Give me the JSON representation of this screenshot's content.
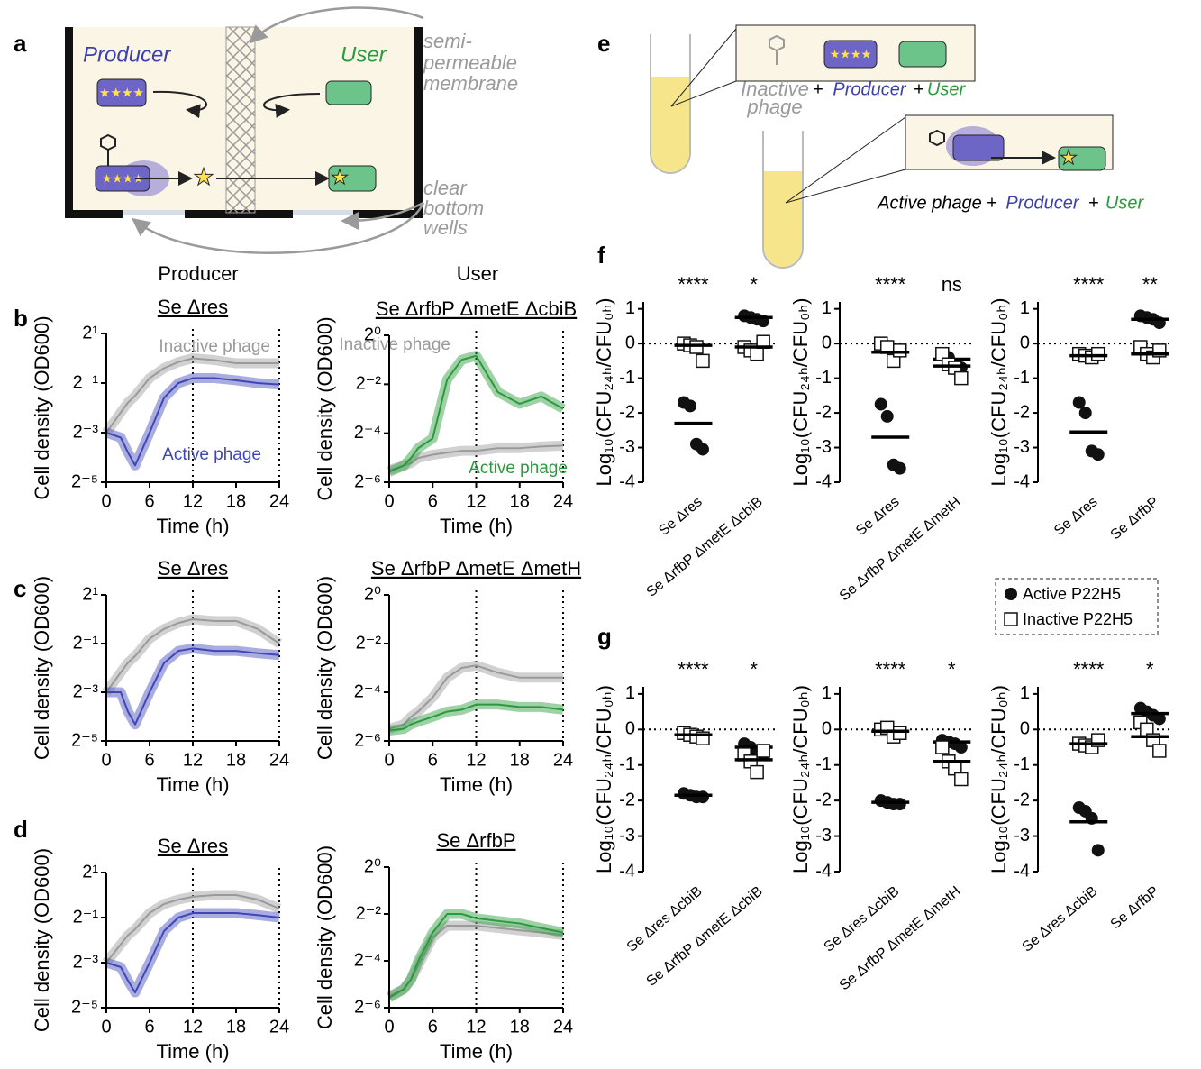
{
  "panel_labels": [
    "a",
    "b",
    "c",
    "d",
    "e",
    "f",
    "g"
  ],
  "column_headers": [
    "Producer",
    "User"
  ],
  "diagram_a": {
    "producer": "Producer",
    "user": "User",
    "membrane_label": [
      "semi-",
      "permeable",
      "membrane"
    ],
    "wells_label": [
      "clear",
      "bottom",
      "wells"
    ]
  },
  "diagram_e": {
    "mixture_1": {
      "phage": [
        "Inactive",
        "phage"
      ],
      "plus_1": "+",
      "producer": "Producer",
      "plus_2": "+",
      "user": "User"
    },
    "mixture_2": {
      "phage": "Active phage",
      "plus_1": "+",
      "producer": "Producer",
      "plus_2": "+",
      "user": "User"
    }
  },
  "chart_data": [
    {
      "type": "line",
      "title": "Se Δres",
      "xlabel": "Time (h)",
      "ylabel": "Cell density (OD600)",
      "yscale": "log2",
      "x": [
        0,
        2,
        3,
        4,
        6,
        8,
        10,
        12,
        15,
        18,
        21,
        24
      ],
      "xlim": [
        0,
        24
      ],
      "xticks": [
        0,
        6,
        12,
        18,
        24
      ],
      "vlines": [
        12,
        24
      ],
      "ylim": [
        0.03125,
        2
      ],
      "yticks": [
        {
          "value": 2,
          "label": "2¹"
        },
        {
          "value": 0.5,
          "label": "2⁻¹"
        },
        {
          "value": 0.125,
          "label": "2⁻³"
        },
        {
          "value": 0.03125,
          "label": "2⁻⁵"
        }
      ],
      "series": [
        {
          "name": "Inactive phage",
          "color": "#9a9a9a",
          "values": [
            0.125,
            0.22,
            0.29,
            0.35,
            0.574,
            0.758,
            0.9,
            1.0,
            0.95,
            0.87,
            0.87,
            0.87
          ]
        },
        {
          "name": "Active phage",
          "color": "#4046b8",
          "values": [
            0.125,
            0.109,
            0.072,
            0.05,
            0.125,
            0.33,
            0.5,
            0.574,
            0.574,
            0.54,
            0.5,
            0.48
          ]
        }
      ]
    },
    {
      "type": "line",
      "title": "Se ΔrfbP ΔmetE ΔcbiB",
      "xlabel": "Time (h)",
      "ylabel": "Cell density (OD600)",
      "yscale": "log2",
      "x": [
        0,
        2,
        3,
        4,
        6,
        8,
        10,
        12,
        15,
        18,
        21,
        24
      ],
      "xlim": [
        0,
        24
      ],
      "xticks": [
        0,
        6,
        12,
        18,
        24
      ],
      "vlines": [
        12,
        24
      ],
      "ylim": [
        0.015625,
        1
      ],
      "yticks": [
        {
          "value": 1,
          "label": "2⁰"
        },
        {
          "value": 0.25,
          "label": "2⁻²"
        },
        {
          "value": 0.0625,
          "label": "2⁻⁴"
        },
        {
          "value": 0.015625,
          "label": "2⁻⁶"
        }
      ],
      "series": [
        {
          "name": "Inactive phage",
          "color": "#9a9a9a",
          "values": [
            0.022,
            0.025,
            0.027,
            0.031,
            0.034,
            0.036,
            0.038,
            0.038,
            0.041,
            0.041,
            0.043,
            0.044
          ]
        },
        {
          "name": "Active phage",
          "color": "#2a9a3c",
          "values": [
            0.021,
            0.025,
            0.031,
            0.041,
            0.054,
            0.287,
            0.5,
            0.56,
            0.2,
            0.144,
            0.177,
            0.125
          ]
        }
      ]
    },
    {
      "type": "line",
      "title": "Se Δres",
      "xlabel": "Time (h)",
      "ylabel": "Cell density (OD600)",
      "yscale": "log2",
      "x": [
        0,
        2,
        3,
        4,
        6,
        8,
        10,
        12,
        15,
        18,
        21,
        24
      ],
      "xlim": [
        0,
        24
      ],
      "xticks": [
        0,
        6,
        12,
        18,
        24
      ],
      "vlines": [
        12,
        24
      ],
      "ylim": [
        0.03125,
        2
      ],
      "yticks": [
        {
          "value": 2,
          "label": "2¹"
        },
        {
          "value": 0.5,
          "label": "2⁻¹"
        },
        {
          "value": 0.125,
          "label": "2⁻³"
        },
        {
          "value": 0.03125,
          "label": "2⁻⁵"
        }
      ],
      "series": [
        {
          "color": "#9a9a9a",
          "values": [
            0.125,
            0.22,
            0.29,
            0.35,
            0.574,
            0.758,
            0.9,
            1.0,
            0.95,
            0.95,
            0.758,
            0.5
          ]
        },
        {
          "color": "#4046b8",
          "values": [
            0.125,
            0.125,
            0.072,
            0.05,
            0.125,
            0.287,
            0.406,
            0.435,
            0.406,
            0.406,
            0.38,
            0.36
          ]
        }
      ]
    },
    {
      "type": "line",
      "title": "Se ΔrfbP ΔmetE ΔmetH",
      "xlabel": "Time (h)",
      "ylabel": "Cell density (OD600)",
      "yscale": "log2",
      "x": [
        0,
        2,
        3,
        4,
        6,
        8,
        10,
        12,
        15,
        18,
        21,
        24
      ],
      "xlim": [
        0,
        24
      ],
      "xticks": [
        0,
        6,
        12,
        18,
        24
      ],
      "vlines": [
        12,
        24
      ],
      "ylim": [
        0.015625,
        1
      ],
      "yticks": [
        {
          "value": 1,
          "label": "2⁰"
        },
        {
          "value": 0.25,
          "label": "2⁻²"
        },
        {
          "value": 0.0625,
          "label": "2⁻⁴"
        },
        {
          "value": 0.015625,
          "label": "2⁻⁶"
        }
      ],
      "series": [
        {
          "color": "#9a9a9a",
          "values": [
            0.022,
            0.025,
            0.031,
            0.036,
            0.054,
            0.095,
            0.125,
            0.134,
            0.109,
            0.095,
            0.095,
            0.095
          ]
        },
        {
          "color": "#2a9a3c",
          "values": [
            0.021,
            0.022,
            0.025,
            0.027,
            0.031,
            0.036,
            0.038,
            0.044,
            0.044,
            0.041,
            0.041,
            0.038
          ]
        }
      ]
    },
    {
      "type": "line",
      "title": "Se Δres",
      "xlabel": "Time (h)",
      "ylabel": "Cell density (OD600)",
      "yscale": "log2",
      "x": [
        0,
        2,
        3,
        4,
        6,
        8,
        10,
        12,
        15,
        18,
        21,
        24
      ],
      "xlim": [
        0,
        24
      ],
      "xticks": [
        0,
        6,
        12,
        18,
        24
      ],
      "vlines": [
        12,
        24
      ],
      "ylim": [
        0.03125,
        2
      ],
      "yticks": [
        {
          "value": 2,
          "label": "2¹"
        },
        {
          "value": 0.5,
          "label": "2⁻¹"
        },
        {
          "value": 0.125,
          "label": "2⁻³"
        },
        {
          "value": 0.03125,
          "label": "2⁻⁵"
        }
      ],
      "series": [
        {
          "color": "#9a9a9a",
          "values": [
            0.125,
            0.22,
            0.29,
            0.35,
            0.574,
            0.758,
            0.87,
            0.95,
            1.0,
            1.0,
            0.87,
            0.66
          ]
        },
        {
          "color": "#4046b8",
          "values": [
            0.125,
            0.109,
            0.072,
            0.05,
            0.125,
            0.33,
            0.5,
            0.574,
            0.574,
            0.574,
            0.54,
            0.5
          ]
        }
      ]
    },
    {
      "type": "line",
      "title": "Se ΔrfbP",
      "xlabel": "Time (h)",
      "ylabel": "Cell density (OD600)",
      "yscale": "log2",
      "x": [
        0,
        2,
        3,
        4,
        6,
        8,
        10,
        12,
        15,
        18,
        21,
        24
      ],
      "xlim": [
        0,
        24
      ],
      "xticks": [
        0,
        6,
        12,
        18,
        24
      ],
      "vlines": [
        12,
        24
      ],
      "ylim": [
        0.015625,
        1
      ],
      "yticks": [
        {
          "value": 1,
          "label": "2⁰"
        },
        {
          "value": 0.25,
          "label": "2⁻²"
        },
        {
          "value": 0.0625,
          "label": "2⁻⁴"
        },
        {
          "value": 0.015625,
          "label": "2⁻⁶"
        }
      ],
      "series": [
        {
          "color": "#9a9a9a",
          "values": [
            0.022,
            0.027,
            0.036,
            0.054,
            0.125,
            0.177,
            0.177,
            0.177,
            0.165,
            0.154,
            0.144,
            0.134
          ]
        },
        {
          "color": "#2a9a3c",
          "values": [
            0.021,
            0.027,
            0.036,
            0.062,
            0.144,
            0.25,
            0.25,
            0.22,
            0.203,
            0.189,
            0.165,
            0.144
          ]
        }
      ]
    },
    {
      "type": "dot",
      "ylabel": "Log₁₀(CFU₂₄ₕ/CFU₀ₕ)",
      "categories": [
        "Se Δres",
        "Se ΔrfbP ΔmetE ΔcbiB"
      ],
      "significance": [
        "****",
        "*"
      ],
      "ylim": [
        -4,
        1.2
      ],
      "yticks": [
        -4,
        -3,
        -2,
        -1,
        0,
        1
      ],
      "hline": 0,
      "series": [
        {
          "name": "Active P22H5",
          "marker": "circle",
          "values": [
            [
              -1.7,
              -1.8,
              -2.9,
              -3.05
            ],
            [
              0.8,
              0.75,
              0.7,
              0.65
            ]
          ],
          "means": [
            -2.3,
            0.75
          ]
        },
        {
          "name": "Inactive P22H5",
          "marker": "square",
          "values": [
            [
              0,
              -0.05,
              -0.1,
              -0.5
            ],
            [
              -0.1,
              -0.2,
              -0.3,
              0.05
            ]
          ],
          "means": [
            -0.05,
            -0.1
          ]
        }
      ]
    },
    {
      "type": "dot",
      "ylabel": "Log₁₀(CFU₂₄ₕ/CFU₀ₕ)",
      "categories": [
        "Se Δres",
        "Se ΔrfbP ΔmetE ΔmetH"
      ],
      "significance": [
        "****",
        "ns"
      ],
      "ylim": [
        -4,
        1.2
      ],
      "yticks": [
        -4,
        -3,
        -2,
        -1,
        0,
        1
      ],
      "hline": 0,
      "series": [
        {
          "marker": "circle",
          "values": [
            [
              -1.75,
              -2.1,
              -3.5,
              -3.6
            ],
            [
              -0.3,
              -0.4,
              -0.6,
              -0.7
            ]
          ],
          "means": [
            -2.7,
            -0.45
          ]
        },
        {
          "marker": "square",
          "values": [
            [
              0,
              -0.1,
              -0.5,
              -0.2
            ],
            [
              -0.3,
              -0.6,
              -0.7,
              -1.0
            ]
          ],
          "means": [
            -0.25,
            -0.65
          ]
        }
      ]
    },
    {
      "type": "dot",
      "ylabel": "Log₁₀(CFU₂₄ₕ/CFU₀ₕ)",
      "categories": [
        "Se Δres",
        "Se ΔrfbP"
      ],
      "significance": [
        "****",
        "**"
      ],
      "ylim": [
        -4,
        1.2
      ],
      "yticks": [
        -4,
        -3,
        -2,
        -1,
        0,
        1
      ],
      "hline": 0,
      "series": [
        {
          "marker": "circle",
          "values": [
            [
              -1.7,
              -2.0,
              -3.1,
              -3.2
            ],
            [
              0.8,
              0.75,
              0.7,
              0.6
            ]
          ],
          "means": [
            -2.55,
            0.7
          ]
        },
        {
          "marker": "square",
          "values": [
            [
              -0.3,
              -0.35,
              -0.4,
              -0.3
            ],
            [
              -0.1,
              -0.3,
              -0.4,
              -0.2
            ]
          ],
          "means": [
            -0.35,
            -0.3
          ]
        }
      ]
    },
    {
      "type": "dot",
      "ylabel": "Log₁₀(CFU₂₄ₕ/CFU₀ₕ)",
      "categories": [
        "Se Δres ΔcbiB",
        "Se ΔrfbP ΔmetE ΔcbiB"
      ],
      "significance": [
        "****",
        "*"
      ],
      "ylim": [
        -4,
        1.2
      ],
      "yticks": [
        -4,
        -3,
        -2,
        -1,
        0,
        1
      ],
      "hline": 0,
      "series": [
        {
          "marker": "circle",
          "values": [
            [
              -1.8,
              -1.85,
              -1.9,
              -1.9
            ],
            [
              -0.4,
              -0.5,
              -0.6,
              -0.7
            ]
          ],
          "means": [
            -1.85,
            -0.5
          ]
        },
        {
          "marker": "square",
          "values": [
            [
              -0.1,
              -0.15,
              -0.2,
              -0.25
            ],
            [
              -0.7,
              -0.9,
              -1.2,
              -0.6
            ]
          ],
          "means": [
            -0.15,
            -0.85
          ]
        }
      ]
    },
    {
      "type": "dot",
      "ylabel": "Log₁₀(CFU₂₄ₕ/CFU₀ₕ)",
      "categories": [
        "Se Δres ΔcbiB",
        "Se ΔrfbP ΔmetE ΔmetH"
      ],
      "significance": [
        "****",
        "*"
      ],
      "ylim": [
        -4,
        1.2
      ],
      "yticks": [
        -4,
        -3,
        -2,
        -1,
        0,
        1
      ],
      "hline": 0,
      "series": [
        {
          "marker": "circle",
          "values": [
            [
              -2.0,
              -2.05,
              -2.1,
              -2.1
            ],
            [
              -0.3,
              -0.35,
              -0.4,
              -0.5
            ]
          ],
          "means": [
            -2.05,
            -0.35
          ]
        },
        {
          "marker": "square",
          "values": [
            [
              0,
              0.05,
              -0.2,
              -0.1
            ],
            [
              -0.5,
              -0.9,
              -1.1,
              -1.4
            ]
          ],
          "means": [
            -0.05,
            -0.9
          ]
        }
      ]
    },
    {
      "type": "dot",
      "ylabel": "Log₁₀(CFU₂₄ₕ/CFU₀ₕ)",
      "categories": [
        "Se Δres ΔcbiB",
        "Se ΔrfbP"
      ],
      "significance": [
        "****",
        "*"
      ],
      "ylim": [
        -4,
        1.2
      ],
      "yticks": [
        -4,
        -3,
        -2,
        -1,
        0,
        1
      ],
      "hline": 0,
      "series": [
        {
          "marker": "circle",
          "values": [
            [
              -2.2,
              -2.3,
              -2.5,
              -3.4
            ],
            [
              0.6,
              0.5,
              0.4,
              0.3
            ]
          ],
          "means": [
            -2.6,
            0.45
          ]
        },
        {
          "marker": "square",
          "values": [
            [
              -0.4,
              -0.45,
              -0.5,
              -0.3
            ],
            [
              0.2,
              0,
              -0.3,
              -0.6
            ]
          ],
          "means": [
            -0.4,
            -0.2
          ]
        }
      ]
    }
  ]
}
